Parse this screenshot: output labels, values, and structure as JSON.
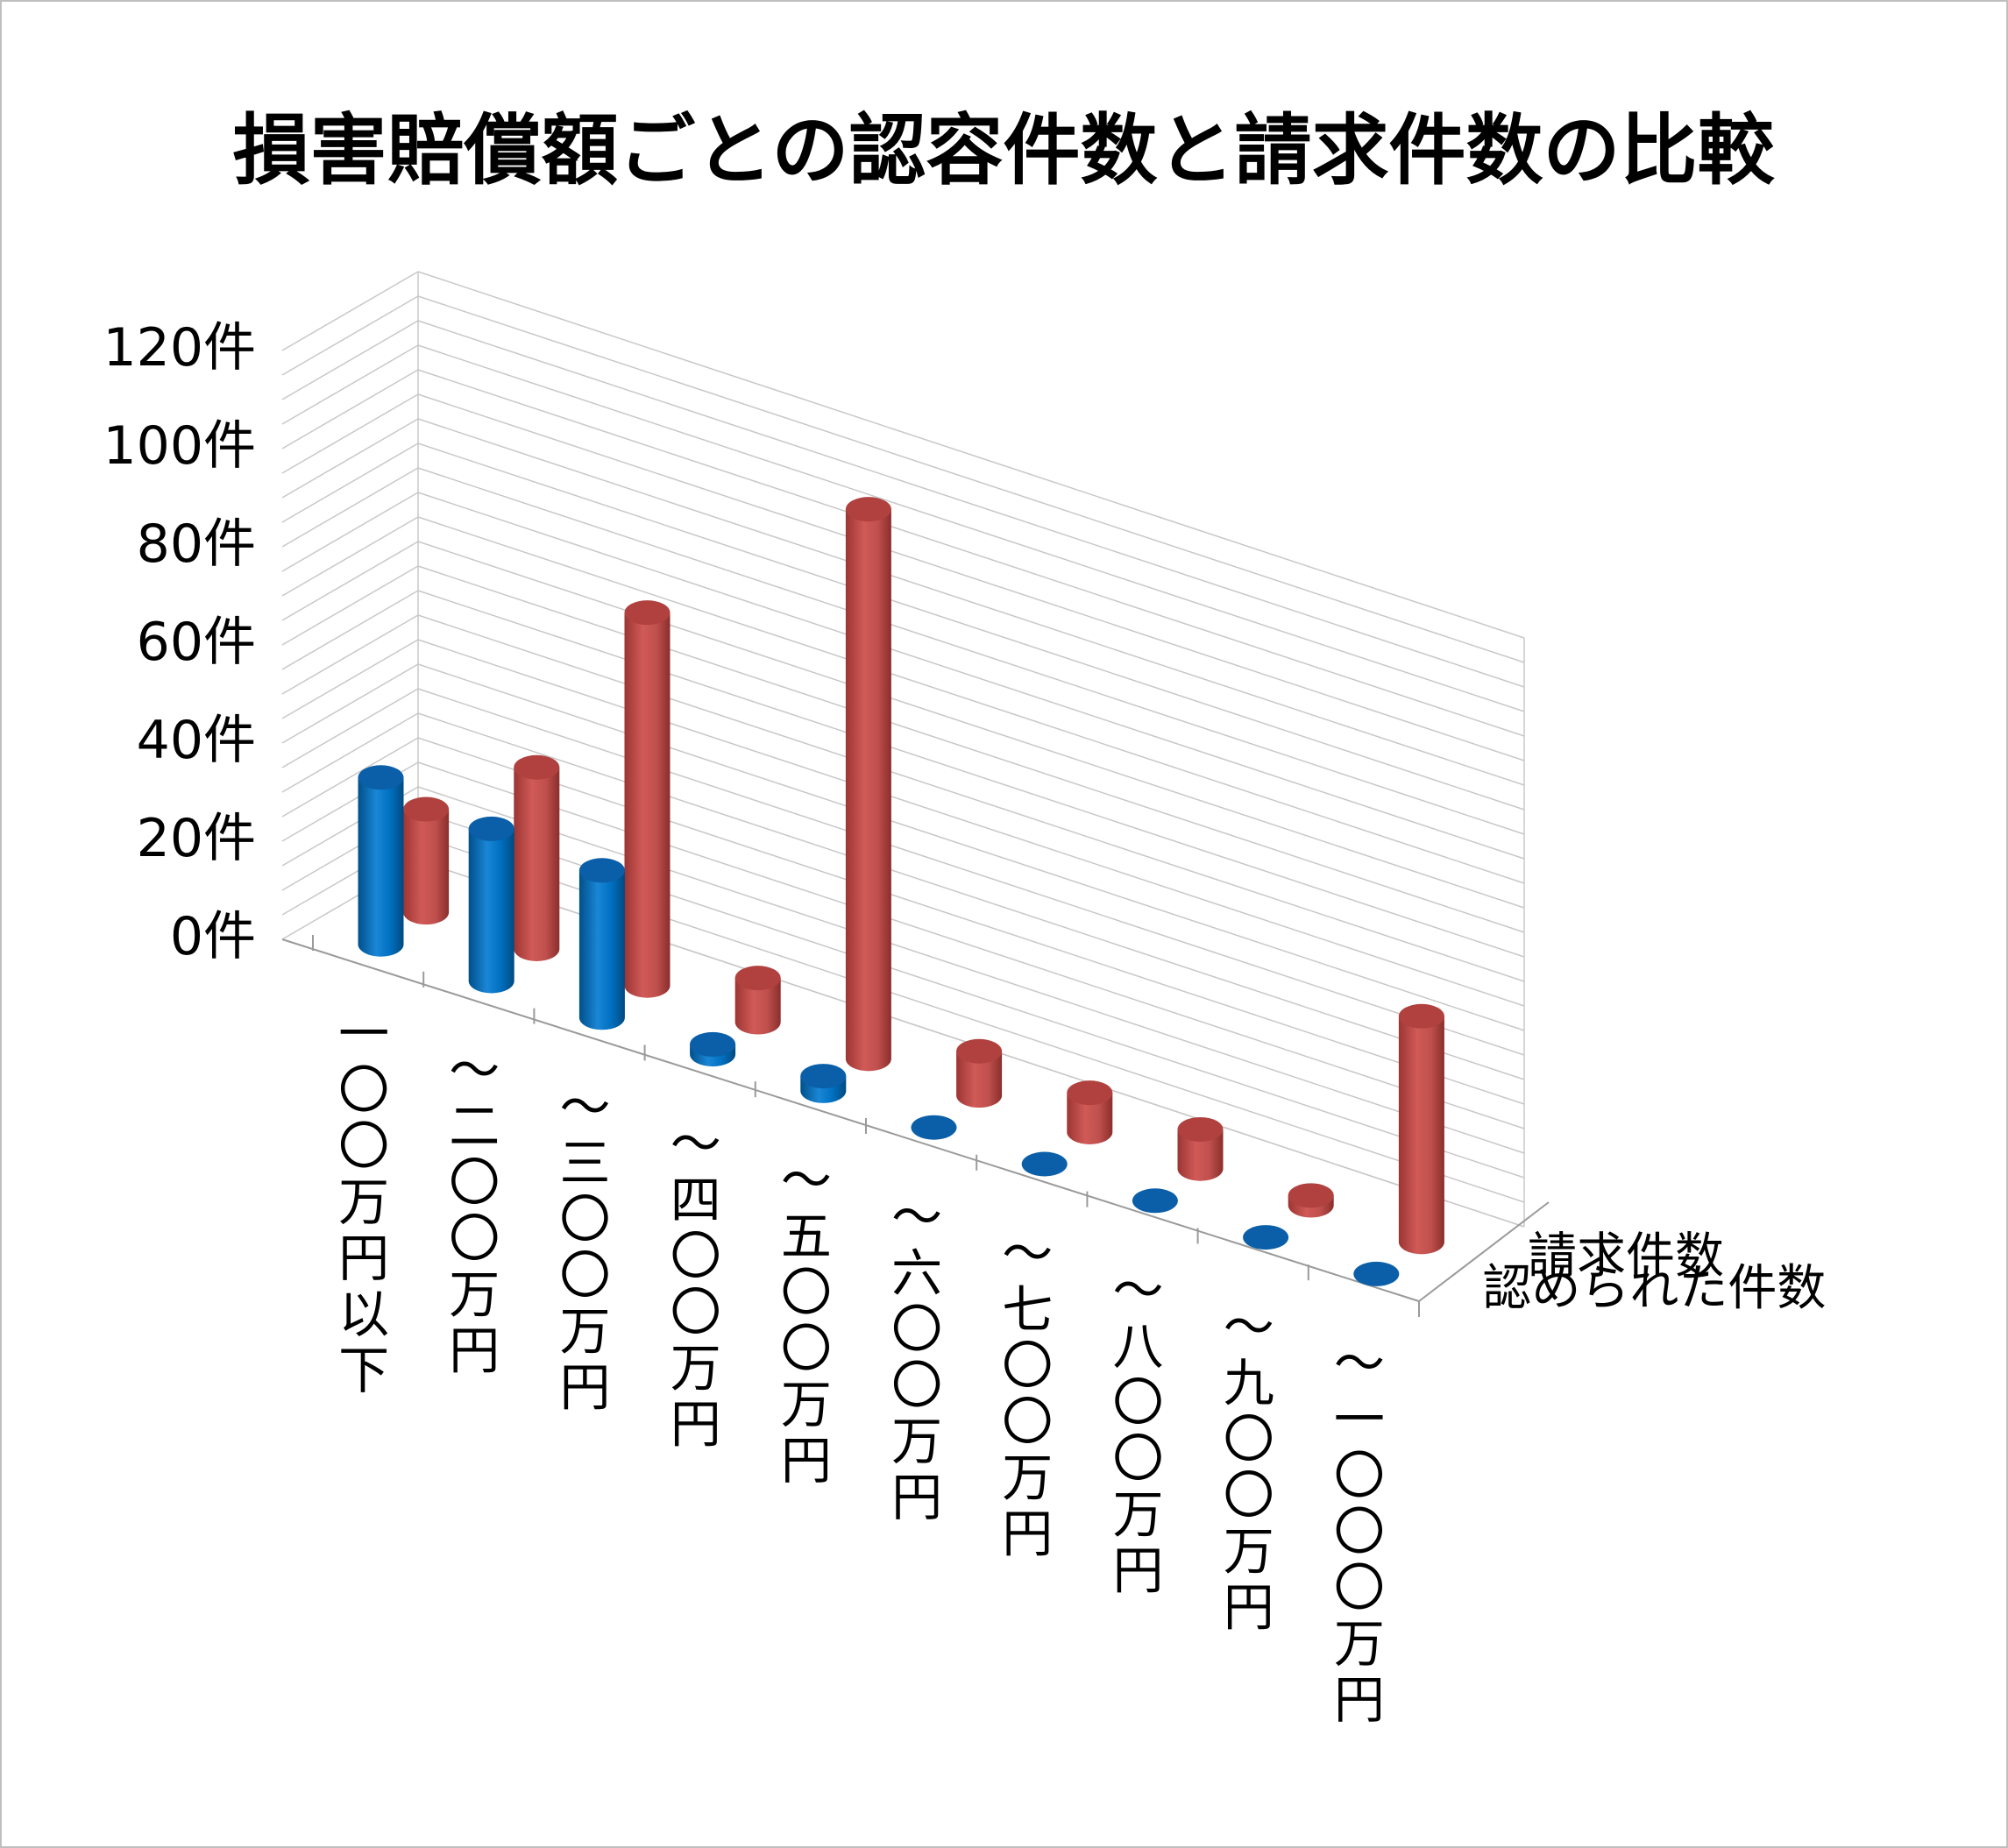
{
  "chart_data": {
    "type": "bar",
    "subtype": "3d-cylinder",
    "title": "損害賠償額ごとの認容件数と請求件数の比較",
    "categories": [
      "一〇〇万円以下",
      "～二〇〇万円",
      "～三〇〇万円",
      "～四〇〇万円",
      "～五〇〇万円",
      "～六〇〇万円",
      "～七〇〇万円",
      "～八〇〇万円",
      "～九〇〇万円",
      "～一〇〇〇万円"
    ],
    "series": [
      {
        "name": "請求件数",
        "color": "#c0504d",
        "values": [
          21,
          37,
          76,
          9,
          112,
          9,
          8,
          8,
          2,
          46
        ]
      },
      {
        "name": "認められた件数",
        "color": "#0070c0",
        "values": [
          34,
          31,
          30,
          2,
          3,
          0,
          0,
          0,
          0,
          0
        ]
      }
    ],
    "ylim": [
      0,
      120
    ],
    "yticks": [
      "0件",
      "20件",
      "40件",
      "60件",
      "80件",
      "100件",
      "120件"
    ],
    "ytick_values": [
      0,
      20,
      40,
      60,
      80,
      100,
      120
    ],
    "grid": true
  }
}
